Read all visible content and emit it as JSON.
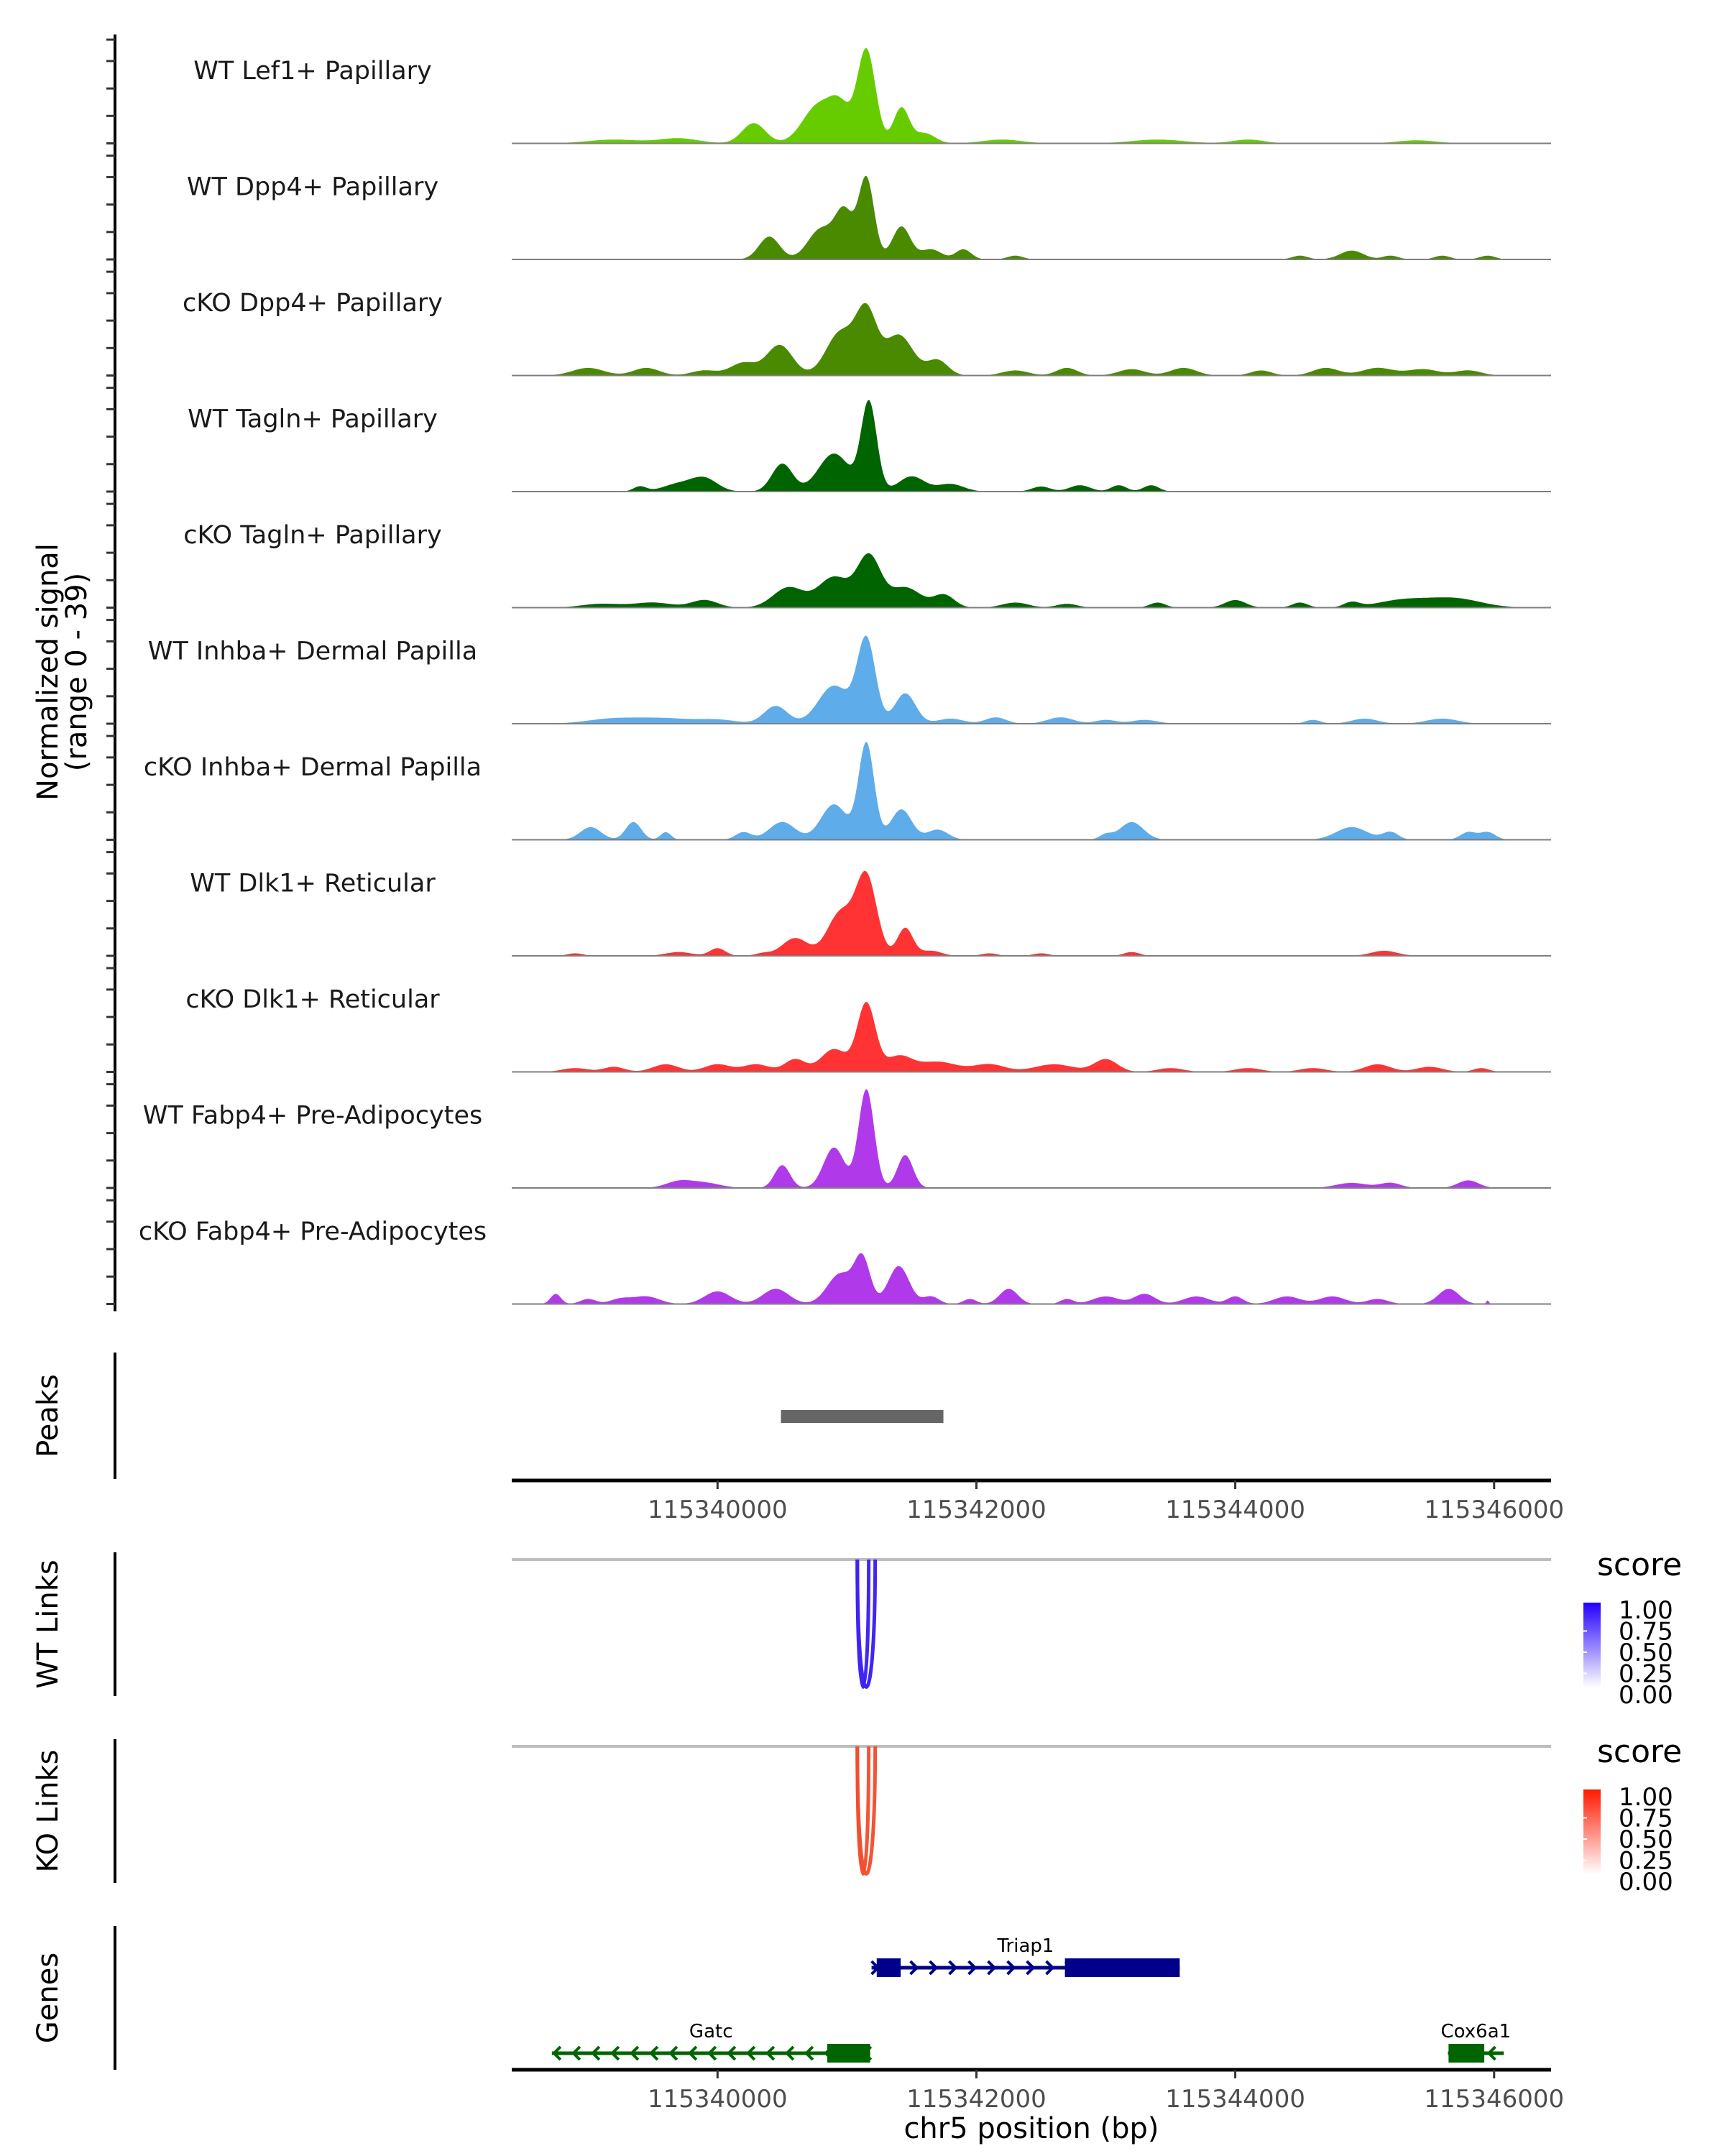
{
  "chart_data": {
    "type": "area",
    "title": "",
    "region": {
      "chrom": "chr5",
      "start": 115338410,
      "end": 115346440
    },
    "xlabel": "chr5 position (bp)",
    "x_ticks": [
      115340000,
      115342000,
      115344000,
      115346000
    ],
    "x_tick_labels": [
      "115340000",
      "115342000",
      "115344000",
      "115346000"
    ],
    "coverage": {
      "ylabel_line1": "Normalized signal",
      "ylabel_line2": "(range 0 - 39)",
      "ylim": [
        0,
        39
      ],
      "tracks": [
        {
          "name": "WT Lef1+ Papillary",
          "color": "#66CC00",
          "peaks": [
            [
              115340280,
              8,
              90
            ],
            [
              115340780,
              15,
              120
            ],
            [
              115340950,
              12,
              80
            ],
            [
              115341150,
              37,
              70
            ],
            [
              115341420,
              14,
              60
            ],
            [
              115341600,
              4,
              80
            ],
            [
              115339200,
              1.5,
              200
            ],
            [
              115339700,
              2,
              150
            ],
            [
              115342200,
              1.5,
              150
            ],
            [
              115343400,
              1.5,
              200
            ],
            [
              115344100,
              1.5,
              120
            ],
            [
              115345400,
              1.2,
              150
            ]
          ]
        },
        {
          "name": "WT Dpp4+ Papillary",
          "color": "#4A8A00",
          "peaks": [
            [
              115340400,
              9,
              80
            ],
            [
              115340800,
              12,
              100
            ],
            [
              115340980,
              18,
              70
            ],
            [
              115341150,
              32,
              60
            ],
            [
              115341420,
              13,
              70
            ],
            [
              115341650,
              4,
              80
            ],
            [
              115341900,
              4,
              60
            ],
            [
              115342300,
              1.5,
              60
            ],
            [
              115344500,
              1.5,
              60
            ],
            [
              115344900,
              3.5,
              90
            ],
            [
              115345200,
              1.5,
              60
            ],
            [
              115345600,
              1.5,
              60
            ],
            [
              115345950,
              1.5,
              60
            ]
          ]
        },
        {
          "name": "cKO Dpp4+ Papillary",
          "color": "#4A8A00",
          "peaks": [
            [
              115339000,
              3,
              120
            ],
            [
              115339450,
              3,
              100
            ],
            [
              115339900,
              2,
              100
            ],
            [
              115340200,
              5,
              100
            ],
            [
              115340480,
              12,
              100
            ],
            [
              115340950,
              17,
              110
            ],
            [
              115341150,
              24,
              80
            ],
            [
              115341400,
              16,
              110
            ],
            [
              115341700,
              6,
              80
            ],
            [
              115342300,
              2,
              100
            ],
            [
              115342700,
              3,
              80
            ],
            [
              115343200,
              2.5,
              100
            ],
            [
              115343600,
              3,
              100
            ],
            [
              115344200,
              2,
              80
            ],
            [
              115344700,
              3,
              100
            ],
            [
              115345100,
              3,
              120
            ],
            [
              115345450,
              2.5,
              120
            ],
            [
              115345800,
              2,
              100
            ]
          ]
        },
        {
          "name": "WT Tagln+ Papillary",
          "color": "#006400",
          "peaks": [
            [
              115339400,
              2,
              50
            ],
            [
              115339700,
              3,
              120
            ],
            [
              115339900,
              5,
              100
            ],
            [
              115340500,
              11,
              80
            ],
            [
              115340900,
              15,
              120
            ],
            [
              115341170,
              35,
              60
            ],
            [
              115341500,
              6,
              100
            ],
            [
              115341800,
              3,
              100
            ],
            [
              115342500,
              2,
              70
            ],
            [
              115342800,
              2.5,
              80
            ],
            [
              115343100,
              2.5,
              60
            ],
            [
              115343350,
              2.5,
              60
            ]
          ]
        },
        {
          "name": "cKO Tagln+ Papillary",
          "color": "#006400",
          "peaks": [
            [
              115339100,
              1.5,
              150
            ],
            [
              115339500,
              2,
              150
            ],
            [
              115339900,
              3,
              100
            ],
            [
              115340550,
              8,
              120
            ],
            [
              115340900,
              12,
              120
            ],
            [
              115341170,
              20,
              90
            ],
            [
              115341450,
              8,
              120
            ],
            [
              115341750,
              5,
              80
            ],
            [
              115342300,
              2,
              100
            ],
            [
              115342700,
              1.5,
              80
            ],
            [
              115343400,
              2,
              60
            ],
            [
              115344000,
              3,
              80
            ],
            [
              115344500,
              2,
              60
            ],
            [
              115344900,
              2,
              60
            ],
            [
              115345300,
              3,
              200
            ],
            [
              115345700,
              3.5,
              200
            ]
          ]
        },
        {
          "name": "WT Inhba+ Dermal Papilla",
          "color": "#5EACEA",
          "peaks": [
            [
              115339200,
              2,
              200
            ],
            [
              115339600,
              2,
              200
            ],
            [
              115340000,
              1.5,
              150
            ],
            [
              115340450,
              7,
              90
            ],
            [
              115340900,
              15,
              120
            ],
            [
              115341150,
              33,
              70
            ],
            [
              115341450,
              12,
              80
            ],
            [
              115341800,
              2,
              100
            ],
            [
              115342150,
              2.5,
              80
            ],
            [
              115342650,
              2.5,
              100
            ],
            [
              115343000,
              1.5,
              80
            ],
            [
              115343300,
              1.5,
              100
            ],
            [
              115344600,
              1.5,
              60
            ],
            [
              115345000,
              2,
              100
            ],
            [
              115345600,
              2,
              120
            ]
          ]
        },
        {
          "name": "cKO Inhba+ Dermal Papilla",
          "color": "#5EACEA",
          "peaks": [
            [
              115339020,
              5,
              80
            ],
            [
              115339350,
              7,
              60
            ],
            [
              115339600,
              3,
              40
            ],
            [
              115340200,
              3,
              60
            ],
            [
              115340500,
              7,
              100
            ],
            [
              115340900,
              14,
              100
            ],
            [
              115341150,
              38,
              60
            ],
            [
              115341420,
              12,
              80
            ],
            [
              115341700,
              4,
              80
            ],
            [
              115343000,
              2,
              50
            ],
            [
              115343200,
              7,
              90
            ],
            [
              115344900,
              5,
              120
            ],
            [
              115345200,
              3,
              60
            ],
            [
              115345800,
              3,
              60
            ],
            [
              115345950,
              3,
              60
            ]
          ]
        },
        {
          "name": "WT Dlk1+ Reticular",
          "color": "#FF3333",
          "peaks": [
            [
              115338900,
              1,
              60
            ],
            [
              115339700,
              1.5,
              100
            ],
            [
              115340000,
              3,
              60
            ],
            [
              115340350,
              1,
              60
            ],
            [
              115340600,
              7,
              100
            ],
            [
              115340950,
              17,
              100
            ],
            [
              115341150,
              31,
              80
            ],
            [
              115341450,
              11,
              60
            ],
            [
              115341650,
              2,
              80
            ],
            [
              115342100,
              1,
              60
            ],
            [
              115342500,
              1,
              60
            ],
            [
              115343200,
              1.5,
              60
            ],
            [
              115345150,
              2,
              100
            ]
          ]
        },
        {
          "name": "cKO Dlk1+ Reticular",
          "color": "#FF3333",
          "peaks": [
            [
              115338900,
              1.5,
              100
            ],
            [
              115339200,
              2,
              80
            ],
            [
              115339600,
              3,
              100
            ],
            [
              115340000,
              3,
              100
            ],
            [
              115340300,
              3,
              100
            ],
            [
              115340600,
              5,
              80
            ],
            [
              115340900,
              9,
              100
            ],
            [
              115341150,
              27,
              70
            ],
            [
              115341400,
              6,
              100
            ],
            [
              115341700,
              4,
              150
            ],
            [
              115342100,
              3,
              120
            ],
            [
              115342600,
              3,
              150
            ],
            [
              115343000,
              5,
              90
            ],
            [
              115343500,
              1.5,
              100
            ],
            [
              115344100,
              1.5,
              100
            ],
            [
              115344600,
              1.5,
              100
            ],
            [
              115345100,
              3,
              100
            ],
            [
              115345500,
              2,
              100
            ],
            [
              115345900,
              1.5,
              60
            ]
          ]
        },
        {
          "name": "WT Fabp4+ Pre-Adipocytes",
          "color": "#B03AEA",
          "peaks": [
            [
              115339700,
              2.5,
              100
            ],
            [
              115339900,
              2,
              120
            ],
            [
              115340500,
              9,
              60
            ],
            [
              115340900,
              16,
              80
            ],
            [
              115341150,
              39,
              60
            ],
            [
              115341450,
              13,
              60
            ],
            [
              115344900,
              2,
              120
            ],
            [
              115345200,
              2,
              80
            ],
            [
              115345800,
              3,
              80
            ]
          ]
        },
        {
          "name": "cKO Fabp4+ Pre-Adipocytes",
          "color": "#B03AEA",
          "peaks": [
            [
              115338750,
              4,
              40
            ],
            [
              115339000,
              2,
              60
            ],
            [
              115339250,
              2,
              80
            ],
            [
              115339450,
              3,
              100
            ],
            [
              115340000,
              5,
              100
            ],
            [
              115340450,
              6,
              100
            ],
            [
              115340950,
              12,
              100
            ],
            [
              115341120,
              17,
              60
            ],
            [
              115341400,
              15,
              80
            ],
            [
              115341650,
              3,
              60
            ],
            [
              115341950,
              2,
              50
            ],
            [
              115342250,
              6,
              70
            ],
            [
              115342700,
              2,
              50
            ],
            [
              115343000,
              3,
              100
            ],
            [
              115343300,
              4,
              80
            ],
            [
              115343700,
              3,
              100
            ],
            [
              115344000,
              3,
              60
            ],
            [
              115344400,
              3,
              100
            ],
            [
              115344750,
              3,
              100
            ],
            [
              115345100,
              2,
              80
            ],
            [
              115345650,
              6,
              80
            ],
            [
              115345950,
              1.5,
              10
            ]
          ]
        }
      ]
    },
    "peaks_track": {
      "label": "Peaks",
      "color": "#666666",
      "regions": [
        [
          115340490,
          115341745
        ]
      ]
    },
    "links": [
      {
        "label": "WT Links",
        "color_high": "#3D24F5",
        "arcs": [
          {
            "start": 115341080,
            "end": 115341218,
            "score": 0.95
          },
          {
            "start": 115341080,
            "end": 115341168,
            "score": 0.9
          }
        ]
      },
      {
        "label": "KO Links",
        "color_high": "#F24E2E",
        "arcs": [
          {
            "start": 115341080,
            "end": 115341218,
            "score": 0.8
          },
          {
            "start": 115341080,
            "end": 115341168,
            "score": 0.75
          }
        ]
      }
    ],
    "legends": [
      {
        "title": "score",
        "low": "#FFFFFF",
        "high": "#2200FF",
        "labels": [
          "1.00",
          "0.75",
          "0.50",
          "0.25",
          "0.00"
        ]
      },
      {
        "title": "score",
        "low": "#FFFFFF",
        "high": "#FF1A00",
        "labels": [
          "1.00",
          "0.75",
          "0.50",
          "0.25",
          "0.00"
        ]
      }
    ],
    "genes": {
      "label": "Genes",
      "items": [
        {
          "name": "Triap1",
          "strand": "+",
          "color": "#00008B",
          "row": 0,
          "start": 115341190,
          "end": 115343571,
          "exons": [
            [
              115341230,
              115341415
            ],
            [
              115342684,
              115343571
            ]
          ]
        },
        {
          "name": "Gatc",
          "strand": "-",
          "color": "#006400",
          "row": 1,
          "start": 115338720,
          "end": 115341179,
          "exons": [
            [
              115340848,
              115341179
            ]
          ]
        },
        {
          "name": "Cox6a1",
          "strand": "-",
          "color": "#006400",
          "row": 1,
          "start": 115345643,
          "end": 115346075,
          "exons": [
            [
              115345648,
              115345924
            ]
          ]
        }
      ]
    }
  }
}
